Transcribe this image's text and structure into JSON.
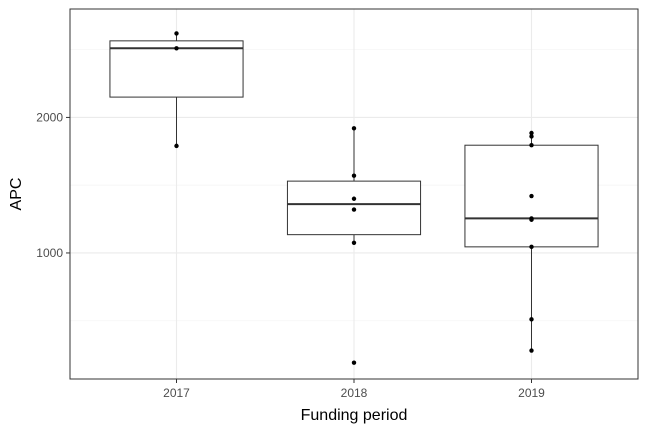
{
  "chart_data": {
    "type": "box",
    "xlabel": "Funding period",
    "ylabel": "APC",
    "categories": [
      "2017",
      "2018",
      "2019"
    ],
    "y_ticks": [
      1000,
      2000
    ],
    "ylim": [
      70,
      2800
    ],
    "grid": true,
    "boxes": [
      {
        "category": "2017",
        "whisker_low": 1790,
        "q1": 2150,
        "median": 2510,
        "q3": 2565,
        "whisker_high": 2620
      },
      {
        "category": "2018",
        "whisker_low": 1075,
        "q1": 1135,
        "median": 1360,
        "q3": 1530,
        "whisker_high": 1920
      },
      {
        "category": "2019",
        "whisker_low": 280,
        "q1": 1045,
        "median": 1255,
        "q3": 1795,
        "whisker_high": 1885
      }
    ],
    "points": [
      {
        "category": "2017",
        "values": [
          2620,
          2510,
          1790
        ]
      },
      {
        "category": "2018",
        "values": [
          1920,
          1570,
          1400,
          1320,
          1075,
          190
        ]
      },
      {
        "category": "2019",
        "values": [
          1885,
          1860,
          1795,
          1420,
          1255,
          1245,
          1045,
          510,
          280
        ]
      }
    ],
    "colors": {
      "box_fill": "#ffffff",
      "box_stroke": "#333333",
      "point": "#000000",
      "grid_major": "#ebebeb",
      "grid_minor": "#f5f5f5",
      "panel_border": "#333333"
    }
  }
}
